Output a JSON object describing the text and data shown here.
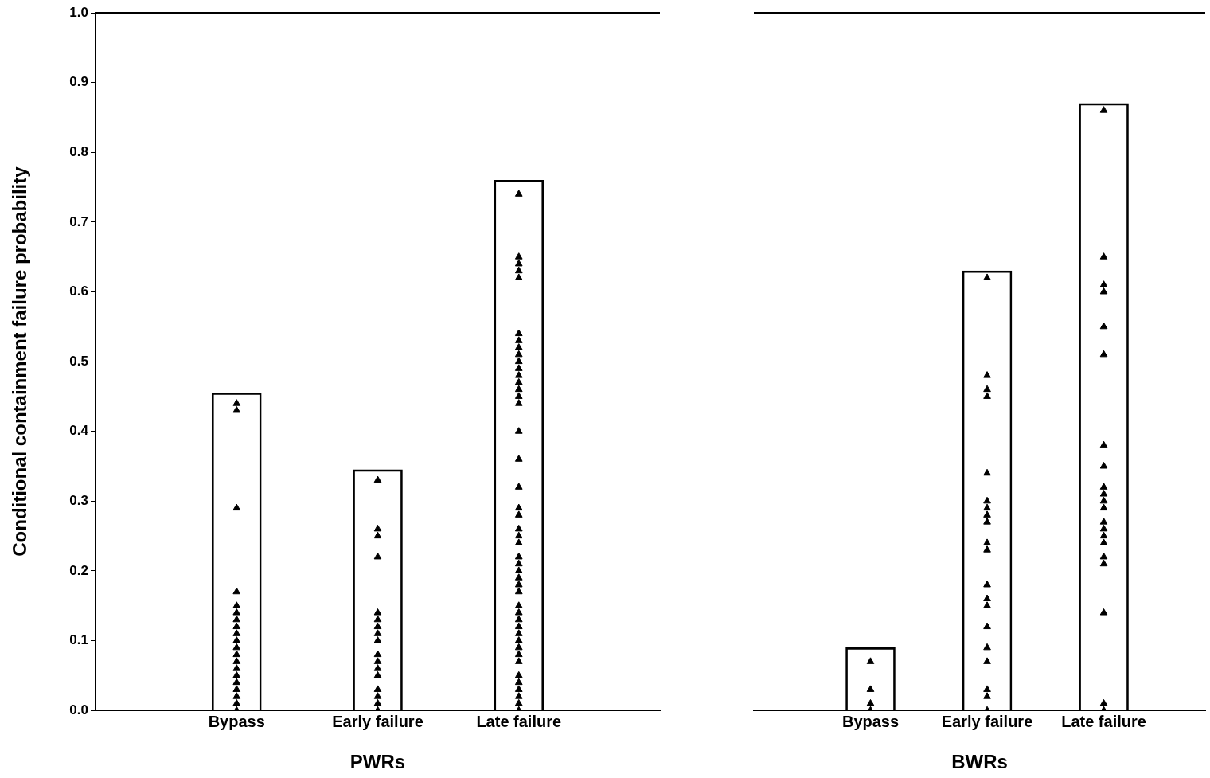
{
  "chart_data": [
    {
      "type": "bar",
      "categories": [
        "Bypass",
        "Early failure",
        "Late failure"
      ],
      "xlabel": "PWRs",
      "ylabel": "Conditional containment failure probability",
      "ylim": [
        0,
        1
      ],
      "yticks": [
        {
          "value": 0,
          "label": "0.0"
        },
        {
          "value": 0.1,
          "label": "0.1"
        },
        {
          "value": 0.2,
          "label": "0.2"
        },
        {
          "value": 0.3,
          "label": "0.3"
        },
        {
          "value": 0.4,
          "label": "0.4"
        },
        {
          "value": 0.5,
          "label": "0.5"
        },
        {
          "value": 0.6,
          "label": "0.6"
        },
        {
          "value": 0.7,
          "label": "0.7"
        },
        {
          "value": 0.8,
          "label": "0.8"
        },
        {
          "value": 0.9,
          "label": "0.9"
        },
        {
          "value": 1,
          "label": "1.0"
        }
      ],
      "marker": "triangle",
      "series": [
        {
          "type": "bar",
          "color": "#000000",
          "values": [
            0.455,
            0.345,
            0.76
          ]
        },
        {
          "type": "scatter",
          "color": "#000000",
          "x": [
            "Bypass",
            "Bypass",
            "Bypass",
            "Bypass",
            "Bypass",
            "Bypass",
            "Bypass",
            "Bypass",
            "Bypass",
            "Bypass",
            "Bypass",
            "Bypass",
            "Bypass",
            "Bypass",
            "Bypass",
            "Bypass",
            "Bypass",
            "Bypass",
            "Bypass",
            "Bypass"
          ],
          "values": [
            0.44,
            0.43,
            0.29,
            0.17,
            0.15,
            0.14,
            0.13,
            0.12,
            0.11,
            0.1,
            0.09,
            0.08,
            0.07,
            0.06,
            0.05,
            0.04,
            0.03,
            0.02,
            0.01,
            0
          ]
        },
        {
          "type": "scatter",
          "color": "#000000",
          "x": [
            "Early failure",
            "Early failure",
            "Early failure",
            "Early failure",
            "Early failure",
            "Early failure",
            "Early failure",
            "Early failure",
            "Early failure",
            "Early failure",
            "Early failure",
            "Early failure",
            "Early failure",
            "Early failure",
            "Early failure",
            "Early failure",
            "Early failure"
          ],
          "values": [
            0.33,
            0.26,
            0.25,
            0.22,
            0.14,
            0.13,
            0.12,
            0.11,
            0.1,
            0.08,
            0.07,
            0.06,
            0.05,
            0.03,
            0.02,
            0.01,
            0
          ]
        },
        {
          "type": "scatter",
          "color": "#000000",
          "x": [
            "Late failure",
            "Late failure",
            "Late failure",
            "Late failure",
            "Late failure",
            "Late failure",
            "Late failure",
            "Late failure",
            "Late failure",
            "Late failure",
            "Late failure",
            "Late failure",
            "Late failure",
            "Late failure",
            "Late failure",
            "Late failure",
            "Late failure",
            "Late failure",
            "Late failure",
            "Late failure",
            "Late failure",
            "Late failure",
            "Late failure",
            "Late failure",
            "Late failure",
            "Late failure",
            "Late failure",
            "Late failure",
            "Late failure",
            "Late failure",
            "Late failure",
            "Late failure",
            "Late failure",
            "Late failure",
            "Late failure",
            "Late failure",
            "Late failure",
            "Late failure",
            "Late failure",
            "Late failure",
            "Late failure",
            "Late failure",
            "Late failure",
            "Late failure",
            "Late failure"
          ],
          "values": [
            0.74,
            0.65,
            0.64,
            0.63,
            0.62,
            0.54,
            0.53,
            0.52,
            0.51,
            0.5,
            0.49,
            0.48,
            0.47,
            0.46,
            0.45,
            0.44,
            0.4,
            0.36,
            0.32,
            0.29,
            0.28,
            0.26,
            0.25,
            0.24,
            0.22,
            0.21,
            0.2,
            0.19,
            0.18,
            0.17,
            0.15,
            0.14,
            0.13,
            0.12,
            0.11,
            0.1,
            0.09,
            0.08,
            0.07,
            0.05,
            0.04,
            0.03,
            0.02,
            0.01,
            0
          ]
        }
      ]
    },
    {
      "type": "bar",
      "categories": [
        "Bypass",
        "Early failure",
        "Late failure"
      ],
      "xlabel": "BWRs",
      "ylim": [
        0,
        1
      ],
      "tick_labels": "x",
      "marker": "triangle",
      "series": [
        {
          "type": "bar",
          "color": "#000000",
          "values": [
            0.09,
            0.63,
            0.87
          ]
        },
        {
          "type": "scatter",
          "color": "#000000",
          "x": [
            "Bypass",
            "Bypass",
            "Bypass",
            "Bypass"
          ],
          "values": [
            0.07,
            0.03,
            0.01,
            0
          ]
        },
        {
          "type": "scatter",
          "color": "#000000",
          "x": [
            "Early failure",
            "Early failure",
            "Early failure",
            "Early failure",
            "Early failure",
            "Early failure",
            "Early failure",
            "Early failure",
            "Early failure",
            "Early failure",
            "Early failure",
            "Early failure",
            "Early failure",
            "Early failure",
            "Early failure",
            "Early failure",
            "Early failure",
            "Early failure",
            "Early failure",
            "Early failure"
          ],
          "values": [
            0.62,
            0.48,
            0.46,
            0.45,
            0.34,
            0.3,
            0.29,
            0.28,
            0.27,
            0.24,
            0.23,
            0.18,
            0.16,
            0.15,
            0.12,
            0.09,
            0.07,
            0.03,
            0.02,
            0
          ]
        },
        {
          "type": "scatter",
          "color": "#000000",
          "x": [
            "Late failure",
            "Late failure",
            "Late failure",
            "Late failure",
            "Late failure",
            "Late failure",
            "Late failure",
            "Late failure",
            "Late failure",
            "Late failure",
            "Late failure",
            "Late failure",
            "Late failure",
            "Late failure",
            "Late failure",
            "Late failure",
            "Late failure",
            "Late failure",
            "Late failure",
            "Late failure",
            "Late failure"
          ],
          "values": [
            0.86,
            0.65,
            0.61,
            0.6,
            0.55,
            0.51,
            0.38,
            0.35,
            0.32,
            0.31,
            0.3,
            0.29,
            0.27,
            0.26,
            0.25,
            0.24,
            0.22,
            0.21,
            0.14,
            0.01,
            0
          ]
        }
      ]
    }
  ]
}
